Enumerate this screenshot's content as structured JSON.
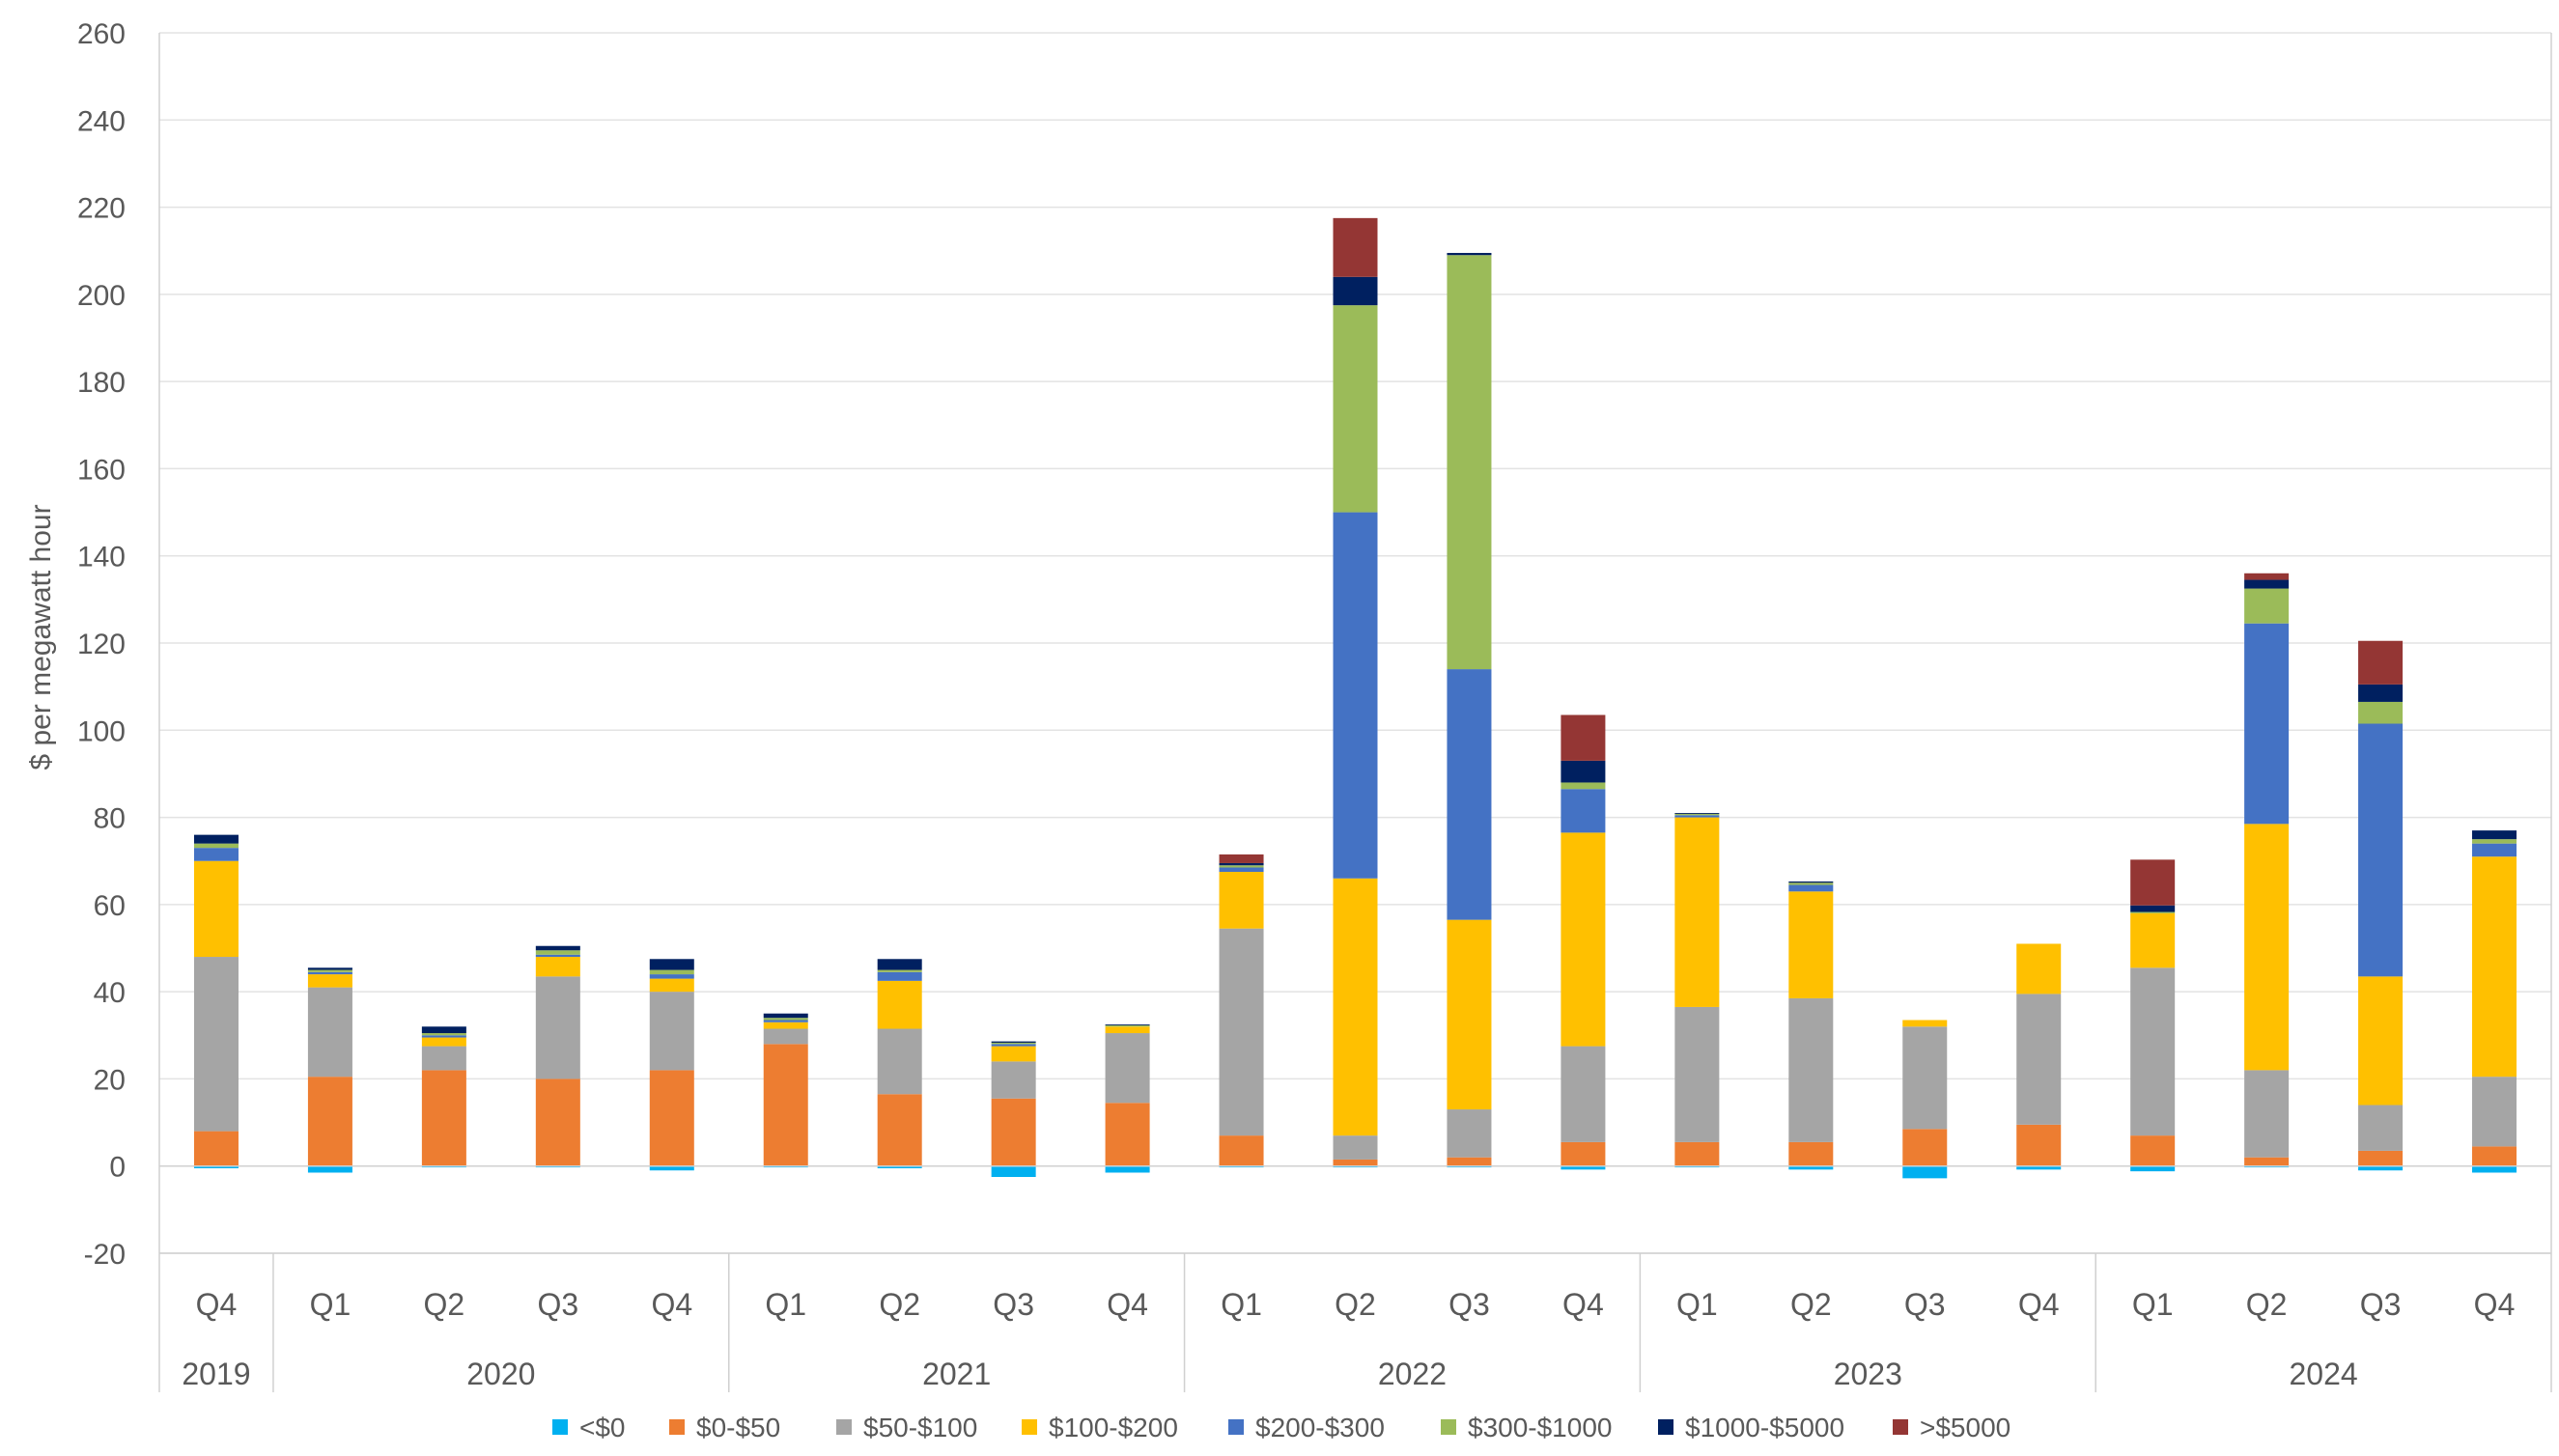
{
  "chart_data": {
    "type": "bar",
    "stacked": true,
    "title": "",
    "xlabel": "",
    "ylabel": "$ per megawatt hour",
    "ylim": [
      -20,
      260
    ],
    "yticks": [
      -20,
      0,
      20,
      40,
      60,
      80,
      100,
      120,
      140,
      160,
      180,
      200,
      220,
      240,
      260
    ],
    "grid": true,
    "legend_position": "bottom",
    "categories": [
      "Q4",
      "Q1",
      "Q2",
      "Q3",
      "Q4",
      "Q1",
      "Q2",
      "Q3",
      "Q4",
      "Q1",
      "Q2",
      "Q3",
      "Q4",
      "Q1",
      "Q2",
      "Q3",
      "Q4",
      "Q1",
      "Q2",
      "Q3",
      "Q4"
    ],
    "years": [
      {
        "label": "2019",
        "count": 1
      },
      {
        "label": "2020",
        "count": 4
      },
      {
        "label": "2021",
        "count": 4
      },
      {
        "label": "2022",
        "count": 4
      },
      {
        "label": "2023",
        "count": 4
      },
      {
        "label": "2024",
        "count": 4
      }
    ],
    "series": [
      {
        "name": "<$0",
        "color": "#00B0F0",
        "values": [
          -0.5,
          -1.5,
          -0.3,
          -0.3,
          -1.0,
          -0.3,
          -0.5,
          -2.5,
          -1.5,
          -0.3,
          -0.3,
          -0.3,
          -0.8,
          -0.3,
          -0.8,
          -2.8,
          -0.8,
          -1.2,
          -0.3,
          -1.0,
          -1.5
        ]
      },
      {
        "name": "$0-$50",
        "color": "#ED7D31",
        "values": [
          8,
          20.5,
          22,
          20,
          22,
          28,
          16.5,
          15.5,
          14.5,
          7,
          1.5,
          2,
          5.5,
          5.5,
          5.5,
          8.5,
          9.5,
          7,
          2,
          3.5,
          4.5
        ]
      },
      {
        "name": "$50-$100",
        "color": "#A5A5A5",
        "values": [
          40,
          20.5,
          5.5,
          23.5,
          18,
          3.5,
          15,
          8.5,
          16,
          47.5,
          5.5,
          11,
          22,
          31,
          33,
          23.5,
          30,
          38.5,
          20,
          10.5,
          16
        ]
      },
      {
        "name": "$100-$200",
        "color": "#FFC000",
        "values": [
          22,
          3,
          2,
          4.5,
          3,
          1.5,
          11,
          3.5,
          1.5,
          13,
          59,
          43.5,
          49,
          43.5,
          24.5,
          1.5,
          11.5,
          12.5,
          56.5,
          29.5,
          50.5
        ]
      },
      {
        "name": "$200-$300",
        "color": "#4472C4",
        "values": [
          3,
          0.5,
          0.5,
          0.5,
          1,
          0.5,
          2,
          0.5,
          0,
          1,
          84,
          57.5,
          10,
          0.5,
          1.5,
          0,
          0,
          0,
          46,
          58,
          3
        ]
      },
      {
        "name": "$300-$1000",
        "color": "#9BBB59",
        "values": [
          1,
          0.5,
          0.5,
          1,
          1,
          0.5,
          0.5,
          0.3,
          0.3,
          0.5,
          47.5,
          95,
          1.5,
          0.3,
          0.5,
          0,
          0,
          0.3,
          8,
          5,
          1
        ]
      },
      {
        "name": "$1000-$5000",
        "color": "#002060",
        "values": [
          2,
          0.5,
          1.5,
          1,
          2.5,
          1,
          2.5,
          0.3,
          0.2,
          0.5,
          6.5,
          0.5,
          5,
          0.2,
          0.3,
          0,
          0,
          1.5,
          2,
          4,
          2
        ]
      },
      {
        "name": ">$5000",
        "color": "#943634",
        "values": [
          0,
          0,
          0,
          0,
          0,
          0,
          0,
          0,
          0,
          2,
          13.5,
          0,
          10.5,
          0,
          0,
          0,
          0,
          10.5,
          1.5,
          10,
          0
        ]
      }
    ]
  }
}
